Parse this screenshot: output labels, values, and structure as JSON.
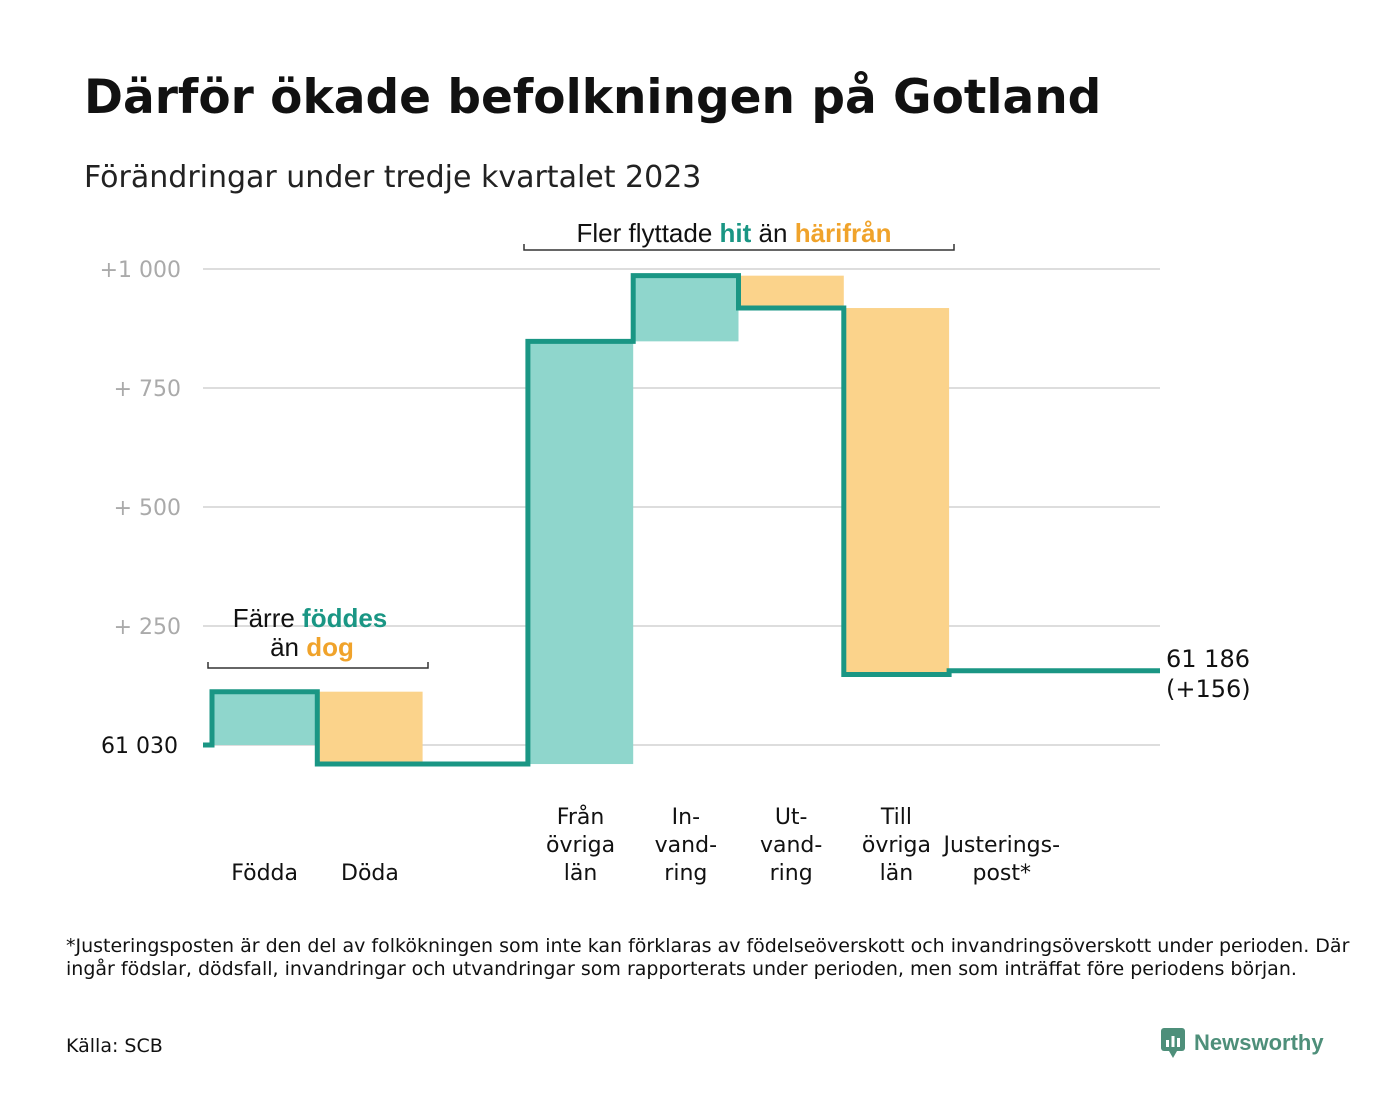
{
  "title": "Därför ökade befolkningen på Gotland",
  "subtitle": "Förändringar under tredje kvartalet 2023",
  "colors": {
    "increase": "#8fd6cc",
    "decrease": "#fbd38b",
    "line": "#1a9684",
    "hit": "#1a9684",
    "harifran": "#f0a32b",
    "grid": "#dddddd",
    "tick": "#aaaaaa"
  },
  "chart_data": {
    "type": "bar",
    "subtype": "waterfall",
    "start_value": 61030,
    "end_value": 61186,
    "y_baseline_label": "61  030",
    "y_ticks": [
      {
        "value": 250,
        "label": "+  250"
      },
      {
        "value": 500,
        "label": "+  500"
      },
      {
        "value": 750,
        "label": "+  750"
      },
      {
        "value": 1000,
        "label": "+1   000"
      }
    ],
    "ylim": [
      -70,
      1000
    ],
    "steps": [
      {
        "id": "fodda",
        "label_lines": [
          "Födda"
        ],
        "change": 112,
        "type": "increase"
      },
      {
        "id": "doda",
        "label_lines": [
          "Döda"
        ],
        "change": -152,
        "type": "decrease"
      },
      {
        "id": "gap",
        "label_lines": [],
        "change": 0,
        "type": "gap"
      },
      {
        "id": "fran-ovriga-lan",
        "label_lines": [
          "Från",
          "övriga",
          "län"
        ],
        "change": 888,
        "type": "increase"
      },
      {
        "id": "invandring",
        "label_lines": [
          "In-",
          "vand-",
          "ring"
        ],
        "change": 138,
        "type": "increase"
      },
      {
        "id": "utvandring",
        "label_lines": [
          "Ut-",
          "vand-",
          "ring"
        ],
        "change": -68,
        "type": "decrease"
      },
      {
        "id": "till-ovriga-lan",
        "label_lines": [
          "Till",
          "övriga",
          "län"
        ],
        "change": -770,
        "type": "decrease"
      },
      {
        "id": "justeringspost",
        "label_lines": [
          "Justerings-",
          "post*"
        ],
        "change": 8,
        "type": "adjustment"
      }
    ],
    "end_label_lines": [
      "61 186",
      "(+156)"
    ],
    "annotations": {
      "births": {
        "prefix": "Färre",
        "highlight1": "föddes",
        "middle": "än",
        "highlight2": "dog"
      },
      "migration": {
        "prefix": "Fler flyttade",
        "highlight1": "hit",
        "middle": "än",
        "highlight2": "härifrån"
      }
    }
  },
  "footnote": "*Justeringsposten är den del av folkökningen som inte kan förklaras av födelseöverskott och invandringsöverskott under perioden. Där ingår födslar, dödsfall, invandringar och utvandringar som rapporterats under perioden, men som inträffat före periodens början.",
  "source": "Källa: SCB",
  "brand": {
    "name": "Newsworthy",
    "icon": "newsworthy-logo-icon"
  }
}
